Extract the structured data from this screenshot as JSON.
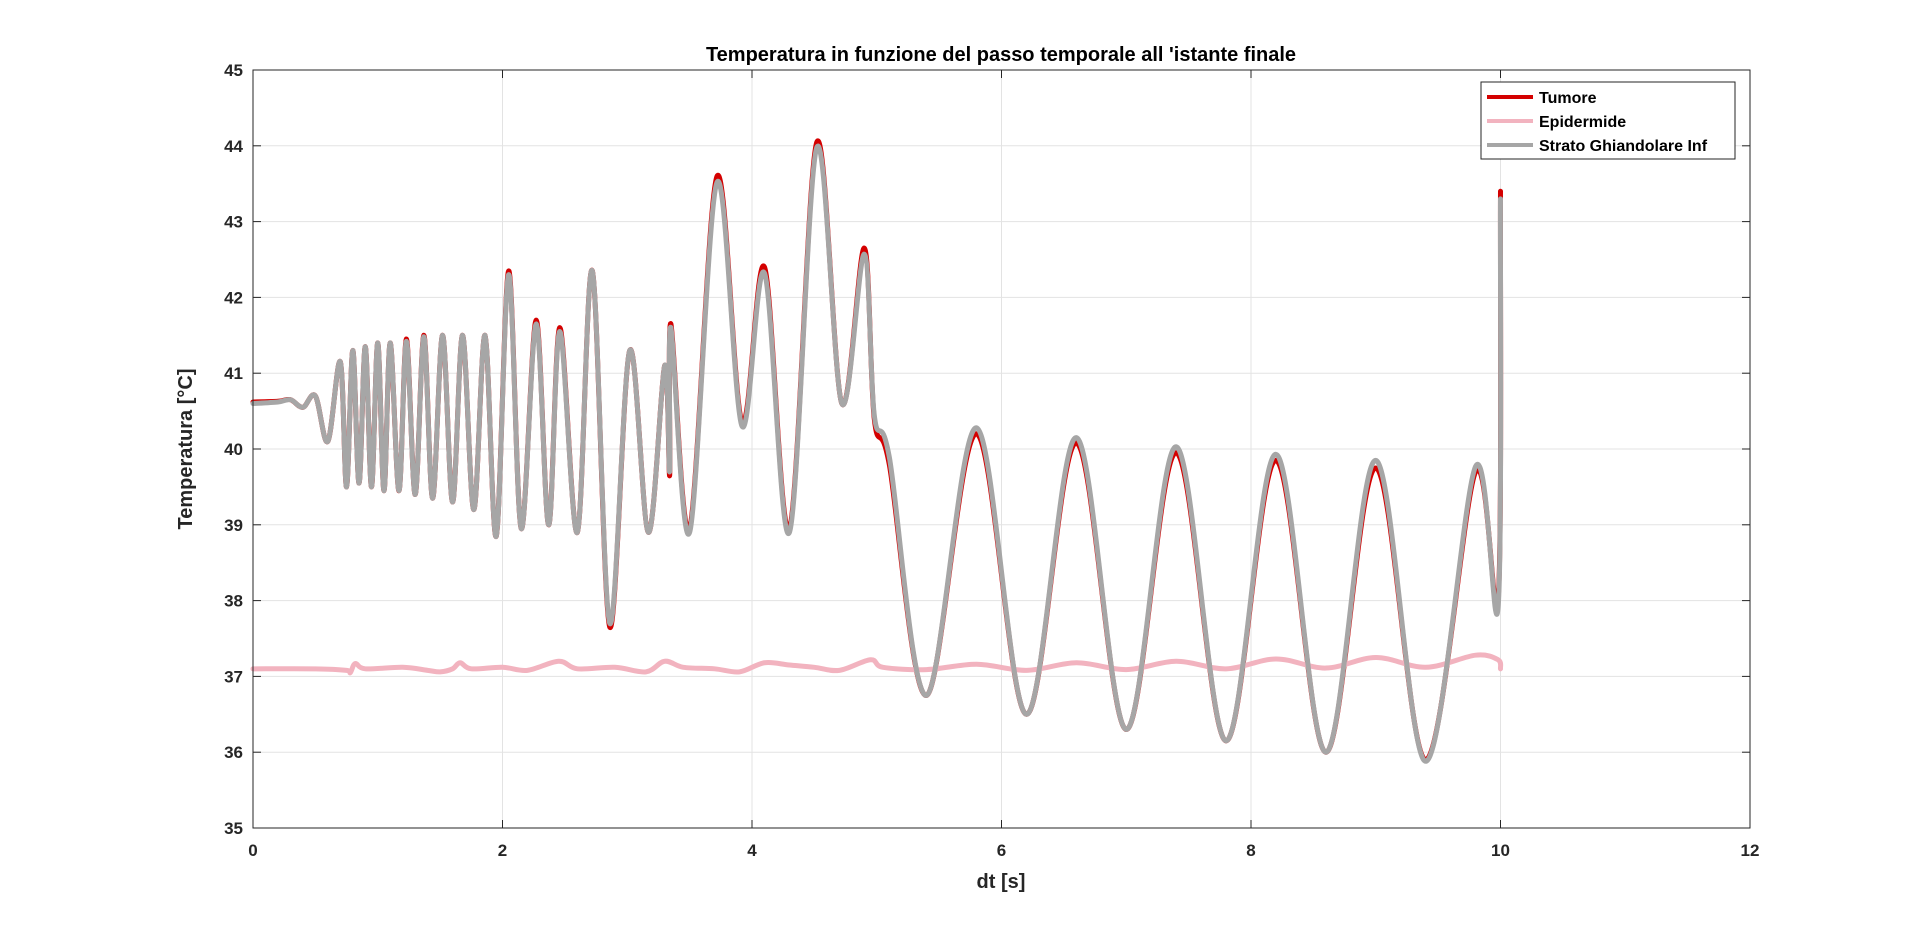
{
  "chart_data": {
    "type": "line",
    "title": "Temperatura in funzione del passo temporale all 'istante finale",
    "xlabel": "dt [s]",
    "ylabel": "Temperatura [°C]",
    "xlim": [
      0,
      12
    ],
    "ylim": [
      35,
      45
    ],
    "xticks": [
      0,
      2,
      4,
      6,
      8,
      10,
      12
    ],
    "yticks": [
      35,
      36,
      37,
      38,
      39,
      40,
      41,
      42,
      43,
      44,
      45
    ],
    "grid": true,
    "legend_position": "top-right",
    "colors": {
      "Tumore": "#d40000",
      "Epidermide": "#f2b3bf",
      "Strato Ghiandolare Inf": "#a6a6a6",
      "axis": "#262626",
      "grid": "#e3e3e3"
    },
    "series": [
      {
        "name": "Tumore",
        "points": [
          [
            0.0,
            40.62
          ],
          [
            0.2,
            40.63
          ],
          [
            0.3,
            40.65
          ],
          [
            0.4,
            40.55
          ],
          [
            0.5,
            40.7
          ],
          [
            0.6,
            40.1
          ],
          [
            0.7,
            41.15
          ],
          [
            0.75,
            39.5
          ],
          [
            0.8,
            41.3
          ],
          [
            0.85,
            39.55
          ],
          [
            0.9,
            41.35
          ],
          [
            0.95,
            39.5
          ],
          [
            1.0,
            41.4
          ],
          [
            1.05,
            39.45
          ],
          [
            1.1,
            41.4
          ],
          [
            1.17,
            39.45
          ],
          [
            1.23,
            41.45
          ],
          [
            1.3,
            39.4
          ],
          [
            1.37,
            41.5
          ],
          [
            1.44,
            39.35
          ],
          [
            1.52,
            41.5
          ],
          [
            1.6,
            39.3
          ],
          [
            1.68,
            41.5
          ],
          [
            1.77,
            39.2
          ],
          [
            1.86,
            41.5
          ],
          [
            1.95,
            38.85
          ],
          [
            2.05,
            42.35
          ],
          [
            2.15,
            38.95
          ],
          [
            2.27,
            41.7
          ],
          [
            2.37,
            39.0
          ],
          [
            2.46,
            41.6
          ],
          [
            2.6,
            38.9
          ],
          [
            2.72,
            42.35
          ],
          [
            2.86,
            37.65
          ],
          [
            3.02,
            41.3
          ],
          [
            3.17,
            38.9
          ],
          [
            3.3,
            41.1
          ],
          [
            3.34,
            39.65
          ],
          [
            3.35,
            41.65
          ],
          [
            3.5,
            38.95
          ],
          [
            3.72,
            43.6
          ],
          [
            3.92,
            40.35
          ],
          [
            4.1,
            42.4
          ],
          [
            4.3,
            38.95
          ],
          [
            4.52,
            44.05
          ],
          [
            4.72,
            40.6
          ],
          [
            4.9,
            42.65
          ],
          [
            4.98,
            40.4
          ],
          [
            5.1,
            39.8
          ],
          [
            5.4,
            36.75
          ],
          [
            5.8,
            40.2
          ],
          [
            6.2,
            36.5
          ],
          [
            6.6,
            40.08
          ],
          [
            7.0,
            36.3
          ],
          [
            7.4,
            39.95
          ],
          [
            7.8,
            36.15
          ],
          [
            8.2,
            39.85
          ],
          [
            8.6,
            36.0
          ],
          [
            9.0,
            39.75
          ],
          [
            9.4,
            35.9
          ],
          [
            9.8,
            39.7
          ],
          [
            9.98,
            38.0
          ],
          [
            10.0,
            43.4
          ]
        ]
      },
      {
        "name": "Epidermide",
        "points": [
          [
            0.0,
            37.1
          ],
          [
            0.5,
            37.1
          ],
          [
            0.75,
            37.08
          ],
          [
            0.78,
            37.05
          ],
          [
            0.82,
            37.17
          ],
          [
            0.9,
            37.1
          ],
          [
            1.2,
            37.12
          ],
          [
            1.4,
            37.08
          ],
          [
            1.5,
            37.06
          ],
          [
            1.6,
            37.1
          ],
          [
            1.66,
            37.18
          ],
          [
            1.75,
            37.1
          ],
          [
            2.0,
            37.12
          ],
          [
            2.2,
            37.08
          ],
          [
            2.45,
            37.2
          ],
          [
            2.6,
            37.1
          ],
          [
            2.9,
            37.12
          ],
          [
            3.15,
            37.06
          ],
          [
            3.3,
            37.2
          ],
          [
            3.45,
            37.12
          ],
          [
            3.7,
            37.1
          ],
          [
            3.9,
            37.06
          ],
          [
            4.1,
            37.18
          ],
          [
            4.3,
            37.15
          ],
          [
            4.5,
            37.12
          ],
          [
            4.7,
            37.08
          ],
          [
            4.95,
            37.22
          ],
          [
            5.05,
            37.12
          ],
          [
            5.4,
            37.09
          ],
          [
            5.8,
            37.16
          ],
          [
            6.2,
            37.08
          ],
          [
            6.6,
            37.18
          ],
          [
            7.0,
            37.09
          ],
          [
            7.4,
            37.2
          ],
          [
            7.8,
            37.1
          ],
          [
            8.2,
            37.23
          ],
          [
            8.6,
            37.11
          ],
          [
            9.0,
            37.25
          ],
          [
            9.4,
            37.12
          ],
          [
            9.8,
            37.28
          ],
          [
            9.98,
            37.22
          ],
          [
            10.0,
            37.1
          ]
        ]
      },
      {
        "name": "Strato Ghiandolare Inf",
        "points": [
          [
            0.0,
            40.6
          ],
          [
            0.2,
            40.62
          ],
          [
            0.3,
            40.65
          ],
          [
            0.4,
            40.55
          ],
          [
            0.5,
            40.7
          ],
          [
            0.6,
            40.1
          ],
          [
            0.7,
            41.15
          ],
          [
            0.75,
            39.5
          ],
          [
            0.8,
            41.3
          ],
          [
            0.85,
            39.55
          ],
          [
            0.9,
            41.35
          ],
          [
            0.95,
            39.5
          ],
          [
            1.0,
            41.4
          ],
          [
            1.05,
            39.45
          ],
          [
            1.1,
            41.4
          ],
          [
            1.17,
            39.45
          ],
          [
            1.23,
            41.42
          ],
          [
            1.3,
            39.4
          ],
          [
            1.37,
            41.48
          ],
          [
            1.44,
            39.35
          ],
          [
            1.52,
            41.5
          ],
          [
            1.6,
            39.3
          ],
          [
            1.68,
            41.5
          ],
          [
            1.77,
            39.2
          ],
          [
            1.86,
            41.5
          ],
          [
            1.95,
            38.85
          ],
          [
            2.05,
            42.3
          ],
          [
            2.15,
            38.95
          ],
          [
            2.27,
            41.65
          ],
          [
            2.37,
            39.0
          ],
          [
            2.46,
            41.55
          ],
          [
            2.6,
            38.9
          ],
          [
            2.72,
            42.35
          ],
          [
            2.86,
            37.7
          ],
          [
            3.02,
            41.3
          ],
          [
            3.17,
            38.9
          ],
          [
            3.3,
            41.1
          ],
          [
            3.34,
            39.7
          ],
          [
            3.35,
            41.6
          ],
          [
            3.5,
            38.9
          ],
          [
            3.72,
            43.52
          ],
          [
            3.92,
            40.3
          ],
          [
            4.1,
            42.32
          ],
          [
            4.3,
            38.9
          ],
          [
            4.52,
            43.98
          ],
          [
            4.72,
            40.6
          ],
          [
            4.9,
            42.57
          ],
          [
            4.98,
            40.45
          ],
          [
            5.1,
            39.9
          ],
          [
            5.4,
            36.75
          ],
          [
            5.8,
            40.28
          ],
          [
            6.2,
            36.5
          ],
          [
            6.6,
            40.15
          ],
          [
            7.0,
            36.3
          ],
          [
            7.4,
            40.03
          ],
          [
            7.8,
            36.15
          ],
          [
            8.2,
            39.93
          ],
          [
            8.6,
            36.0
          ],
          [
            9.0,
            39.85
          ],
          [
            9.4,
            35.88
          ],
          [
            9.8,
            39.77
          ],
          [
            9.98,
            37.9
          ],
          [
            10.0,
            43.3
          ]
        ]
      }
    ]
  }
}
